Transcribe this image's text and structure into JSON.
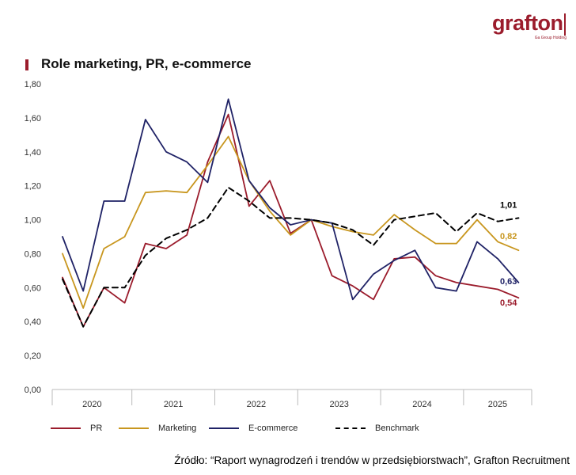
{
  "logo": {
    "text": "grafton",
    "subtext": "Ga Group Holding"
  },
  "title": "Role marketing, PR, e-commerce",
  "source": "Źródło: “Raport wynagrodzeń i trendów w przedsiębiorstwach”, Grafton Recruitment",
  "colors": {
    "brand": "#9b1c2c",
    "pr": "#9b1c2c",
    "marketing": "#c8961e",
    "ecommerce": "#1f2266",
    "benchmark": "#000000"
  },
  "chart_data": {
    "type": "line",
    "title": "Role marketing, PR, e-commerce",
    "xlabel": "",
    "ylabel": "",
    "ylim": [
      0,
      1.8
    ],
    "y_ticks": [
      "0,00",
      "0,20",
      "0,40",
      "0,60",
      "0,80",
      "1,00",
      "1,20",
      "1,40",
      "1,60",
      "1,80"
    ],
    "year_labels": [
      "2020",
      "2021",
      "2022",
      "2023",
      "2024",
      "2025"
    ],
    "periods_per_year": 4,
    "grid": false,
    "legend_position": "bottom",
    "series": [
      {
        "name": "PR",
        "color": "#9b1c2c",
        "dashed": false,
        "end_label": "0,54",
        "values": [
          0.66,
          0.37,
          0.6,
          0.51,
          0.86,
          0.83,
          0.91,
          1.34,
          1.62,
          1.08,
          1.23,
          0.92,
          1.0,
          0.67,
          0.61,
          0.53,
          0.77,
          0.78,
          0.67,
          0.63,
          0.61,
          0.59,
          0.54
        ]
      },
      {
        "name": "Marketing",
        "color": "#c8961e",
        "dashed": false,
        "end_label": "0,82",
        "values": [
          0.8,
          0.48,
          0.83,
          0.9,
          1.16,
          1.17,
          1.16,
          1.32,
          1.49,
          1.23,
          1.05,
          0.91,
          1.0,
          0.96,
          0.93,
          0.91,
          1.03,
          0.94,
          0.86,
          0.86,
          1.0,
          0.87,
          0.82
        ]
      },
      {
        "name": "E-commerce",
        "color": "#1f2266",
        "dashed": false,
        "end_label": "0,63",
        "values": [
          0.9,
          0.58,
          1.11,
          1.11,
          1.59,
          1.4,
          1.34,
          1.22,
          1.71,
          1.23,
          1.07,
          0.97,
          1.0,
          0.98,
          0.53,
          0.68,
          0.76,
          0.82,
          0.6,
          0.58,
          0.87,
          0.77,
          0.63
        ]
      },
      {
        "name": "Benchmark",
        "color": "#000000",
        "dashed": true,
        "end_label": "1,01",
        "values": [
          0.65,
          0.37,
          0.6,
          0.6,
          0.79,
          0.89,
          0.94,
          1.01,
          1.19,
          1.11,
          1.01,
          1.01,
          1.0,
          0.98,
          0.94,
          0.85,
          1.0,
          1.02,
          1.04,
          0.93,
          1.04,
          0.99,
          1.01
        ]
      }
    ]
  }
}
